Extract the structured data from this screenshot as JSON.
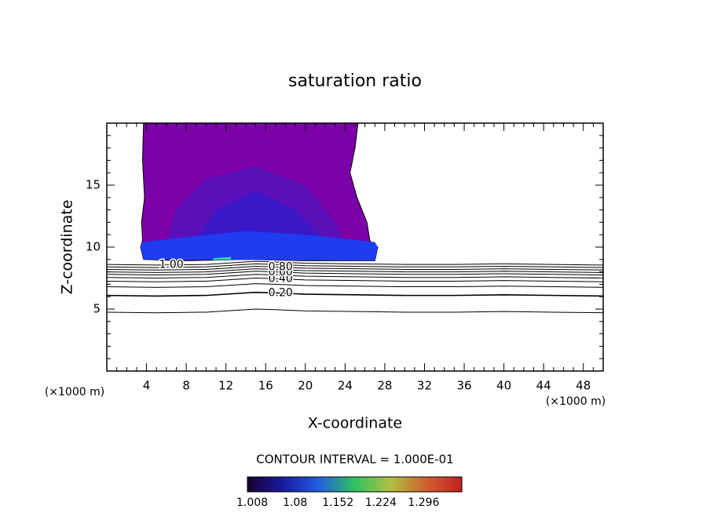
{
  "chart_data": {
    "type": "contour",
    "title": "saturation ratio",
    "xlabel": "X-coordinate",
    "ylabel": "Z-coordinate",
    "x_unit_left": "(×1000 m)",
    "x_unit_right": "(×1000 m)",
    "xlim": [
      0,
      50
    ],
    "xticks": [
      4,
      8,
      12,
      16,
      20,
      24,
      28,
      32,
      36,
      40,
      44,
      48
    ],
    "ylim": [
      0,
      20
    ],
    "yticks": [
      5,
      10,
      15
    ],
    "regions": [
      {
        "color": "#7c00a8",
        "x": [
          3.7,
          3.6,
          3.8,
          3.5,
          3.6,
          3.4,
          3.7,
          8,
          14,
          20,
          27,
          27.3,
          26.5,
          26.2,
          25.2,
          24.5,
          25.0,
          25.3
        ],
        "y": [
          20,
          17,
          14,
          12,
          10.6,
          10,
          9.0,
          8.9,
          9.0,
          8.9,
          8.9,
          10,
          10.5,
          12,
          14,
          16,
          18,
          20
        ]
      },
      {
        "color": "#5a10b8",
        "x": [
          6,
          7,
          10,
          15,
          20,
          23,
          24
        ],
        "y": [
          10.5,
          13,
          15.5,
          16.5,
          15,
          12,
          10.5
        ]
      },
      {
        "color": "#3a18c8",
        "x": [
          9,
          11,
          15,
          19,
          22
        ],
        "y": [
          10.5,
          13,
          14.5,
          13,
          10.5
        ]
      },
      {
        "color": "#1f3cf0",
        "x": [
          3.5,
          8,
          14,
          20,
          27,
          27.3,
          27,
          3.7,
          3.4
        ],
        "y": [
          10.4,
          10.8,
          11.3,
          11.0,
          10.4,
          10,
          8.9,
          9.0,
          10
        ]
      },
      {
        "color": "#30e0a0",
        "x": [
          10.7,
          12.5,
          12.5,
          10.7
        ],
        "y": [
          9.1,
          9.2,
          9.0,
          8.95
        ]
      }
    ],
    "contour_x": [
      0,
      5,
      10,
      13,
      15,
      17,
      20,
      25,
      30,
      35,
      40,
      45,
      50
    ],
    "contours": [
      {
        "level": 0.1,
        "y": [
          4.75,
          4.7,
          4.75,
          4.9,
          5.0,
          4.95,
          4.85,
          4.8,
          4.75,
          4.75,
          4.8,
          4.75,
          4.7
        ]
      },
      {
        "level": 0.2,
        "label": "0.20",
        "y": [
          6.1,
          6.05,
          6.1,
          6.25,
          6.35,
          6.3,
          6.2,
          6.15,
          6.1,
          6.1,
          6.15,
          6.1,
          6.05
        ]
      },
      {
        "level": 0.3,
        "y": [
          6.8,
          6.75,
          6.8,
          6.95,
          7.05,
          7.0,
          6.9,
          6.85,
          6.8,
          6.8,
          6.85,
          6.8,
          6.75
        ]
      },
      {
        "level": 0.4,
        "label": "0.40",
        "y": [
          7.25,
          7.2,
          7.25,
          7.4,
          7.5,
          7.45,
          7.35,
          7.3,
          7.25,
          7.25,
          7.3,
          7.25,
          7.2
        ]
      },
      {
        "level": 0.5,
        "y": [
          7.55,
          7.5,
          7.55,
          7.7,
          7.8,
          7.75,
          7.65,
          7.6,
          7.55,
          7.55,
          7.6,
          7.55,
          7.5
        ]
      },
      {
        "level": 0.6,
        "label": "0.60",
        "y": [
          7.8,
          7.75,
          7.8,
          7.95,
          8.05,
          8.0,
          7.9,
          7.85,
          7.8,
          7.8,
          7.85,
          7.8,
          7.75
        ]
      },
      {
        "level": 0.7,
        "y": [
          8.0,
          7.95,
          8.0,
          8.15,
          8.25,
          8.2,
          8.1,
          8.05,
          8.0,
          8.0,
          8.05,
          8.0,
          7.95
        ]
      },
      {
        "level": 0.8,
        "label": "0.80",
        "y": [
          8.2,
          8.15,
          8.2,
          8.35,
          8.45,
          8.4,
          8.3,
          8.25,
          8.2,
          8.2,
          8.25,
          8.2,
          8.15
        ]
      },
      {
        "level": 0.9,
        "y": [
          8.4,
          8.35,
          8.4,
          8.55,
          8.65,
          8.6,
          8.5,
          8.45,
          8.4,
          8.4,
          8.45,
          8.4,
          8.35
        ]
      },
      {
        "level": 1.0,
        "label": "1.00",
        "y": [
          8.6,
          8.55,
          8.6,
          8.75,
          8.85,
          8.8,
          8.7,
          8.65,
          8.6,
          8.6,
          8.65,
          8.6,
          8.55
        ]
      }
    ],
    "contour_interval_text": "CONTOUR INTERVAL = 1.000E-01",
    "colorbar": {
      "clim": [
        1.0,
        1.36
      ],
      "ticks": [
        1.008,
        1.08,
        1.152,
        1.224,
        1.296
      ],
      "colormap": [
        "#1a0030",
        "#1a1aa0",
        "#2060e0",
        "#30c060",
        "#b0c040",
        "#d06030",
        "#c02020"
      ]
    }
  }
}
